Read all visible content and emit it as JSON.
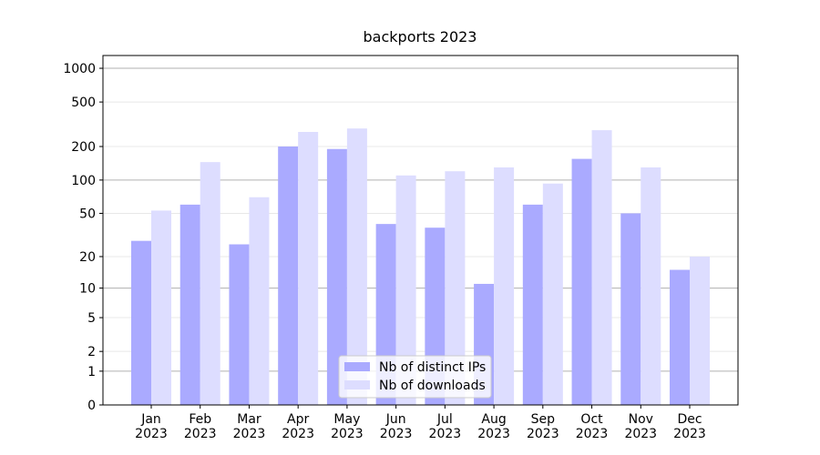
{
  "chart_data": {
    "type": "bar",
    "title": "backports 2023",
    "categories": [
      "Jan\n2023",
      "Feb\n2023",
      "Mar\n2023",
      "Apr\n2023",
      "May\n2023",
      "Jun\n2023",
      "Jul\n2023",
      "Aug\n2023",
      "Sep\n2023",
      "Oct\n2023",
      "Nov\n2023",
      "Dec\n2023"
    ],
    "series": [
      {
        "name": "Nb of distinct IPs",
        "color": "#aaaaff",
        "values": [
          28,
          60,
          26,
          200,
          190,
          40,
          37,
          11,
          60,
          155,
          50,
          15
        ]
      },
      {
        "name": "Nb of downloads",
        "color": "#ddddff",
        "values": [
          53,
          145,
          70,
          270,
          290,
          110,
          120,
          130,
          93,
          280,
          130,
          20
        ]
      }
    ],
    "yscale": "log1p",
    "ylim": [
      0,
      1300
    ],
    "yticks": [
      0,
      1,
      2,
      5,
      10,
      20,
      50,
      100,
      200,
      500,
      1000
    ],
    "grid": true,
    "legend": "lower center"
  }
}
